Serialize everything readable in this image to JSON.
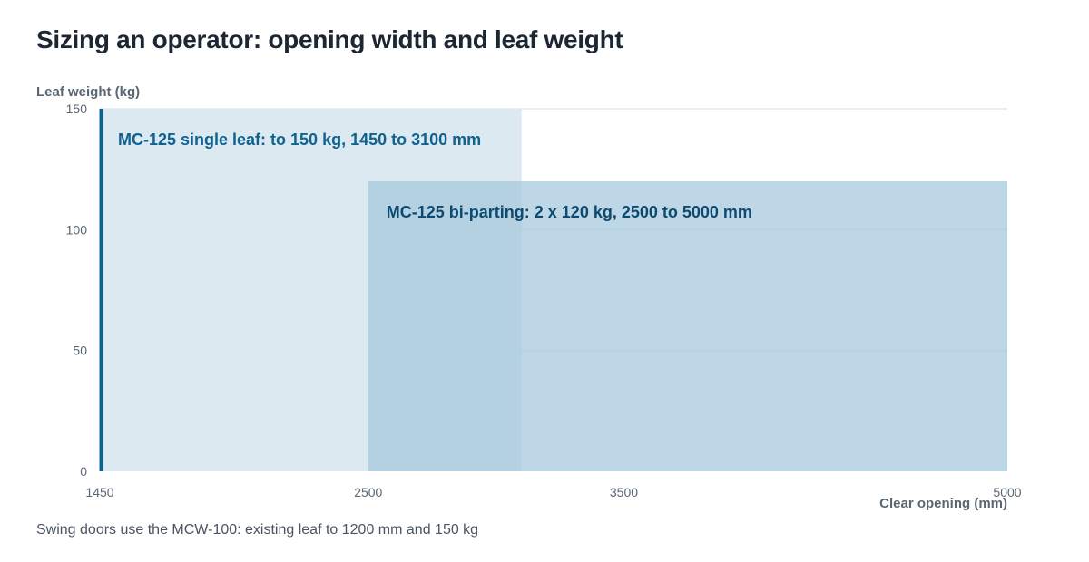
{
  "title": "Sizing an operator: opening width and leaf weight",
  "footnote": "Swing doors use the MCW-100: existing leaf to 1200 mm and 150 kg",
  "colors": {
    "single": "#dce9f1",
    "bipart": "#a3c6dc",
    "single_label": "#0f6390",
    "bipart_label": "#0e4a70",
    "axis_line": "#0f6390",
    "grid": "#dfe8ef",
    "tick": "#5b6673"
  },
  "chart_data": {
    "type": "area",
    "title": "Sizing an operator: opening width and leaf weight",
    "xlabel": "Clear opening (mm)",
    "ylabel": "Leaf weight (kg)",
    "xlim": [
      1450,
      5000
    ],
    "ylim": [
      0,
      150
    ],
    "xticks": [
      1450,
      2500,
      3500,
      5000
    ],
    "yticks": [
      0,
      50,
      100,
      150
    ],
    "grid": true,
    "series": [
      {
        "name": "MC-125 single leaf",
        "label": "MC-125 single leaf: to 150 kg, 1450 to 3100 mm",
        "x_range": [
          1450,
          3100
        ],
        "y_max": 150
      },
      {
        "name": "MC-125 bi-parting",
        "label": "MC-125 bi-parting: 2 x 120 kg, 2500 to 5000 mm",
        "x_range": [
          2500,
          5000
        ],
        "y_max": 120
      }
    ]
  }
}
